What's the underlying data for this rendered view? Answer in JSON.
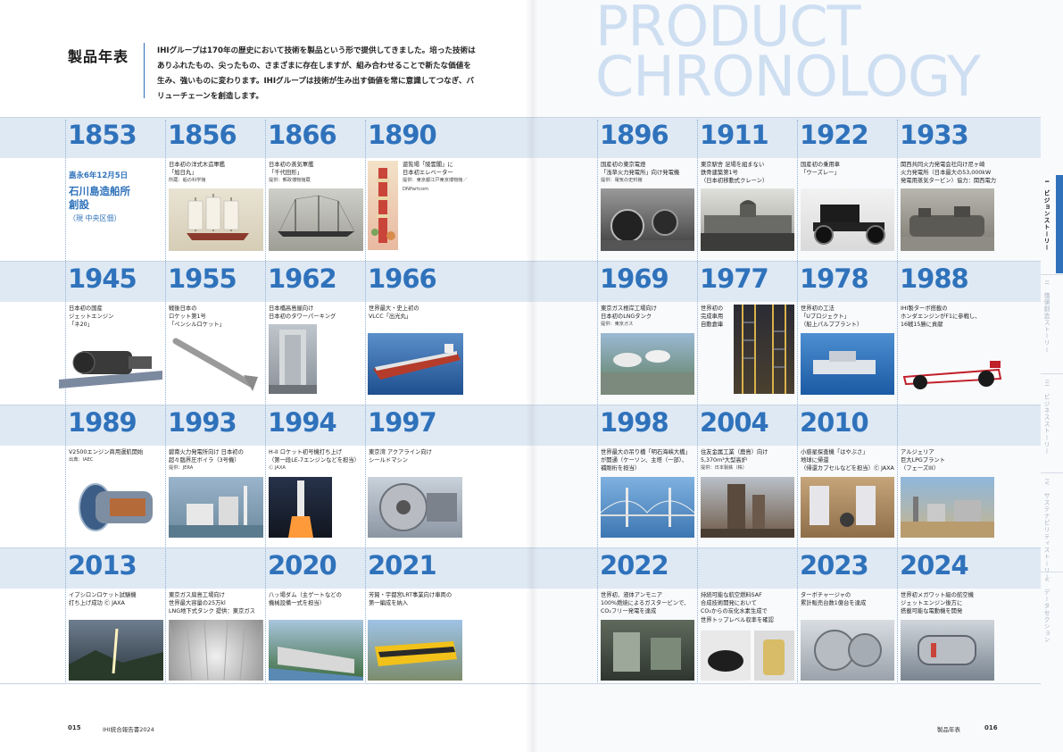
{
  "heading": "製品年表",
  "intro": "IHIグループは170年の歴史において技術を製品という形で提供してきました。培った技術はありふれたもの、尖ったもの、さまざまに存在しますが、組み合わせることで新たな価値を生み、強いものに変わります。IHIグループは技術が生み出す価値を常に意識してつなぎ、バリューチェーンを創造します。",
  "big_title": [
    "PRODUCT",
    "CHRONOLOGY"
  ],
  "founding": {
    "date": "嘉永6年12月5日",
    "name_line1": "石川島造船所",
    "name_line2": "創設",
    "location": "（現 中央区佃）"
  },
  "years": {
    "r1": [
      "1853",
      "1856",
      "1866",
      "1890",
      "1896",
      "1911",
      "1922",
      "1933"
    ],
    "r2": [
      "1945",
      "1955",
      "1962",
      "1966",
      "1969",
      "1977",
      "1978",
      "1988"
    ],
    "r3": [
      "1989",
      "1993",
      "1994",
      "1997",
      "1998",
      "2004",
      "2010"
    ],
    "r4": [
      "2013",
      "2020",
      "2021",
      "2022",
      "2023",
      "2024"
    ]
  },
  "captions": {
    "c1856": [
      "日本初の洋式木造軍艦",
      "「旭日丸」",
      "所蔵：船の科学館"
    ],
    "c1866": [
      "日本初の蒸気軍艦",
      "「千代田形」",
      "提供：郵政博物館蔵"
    ],
    "c1890": [
      "遊覧場「陵雲閣」に",
      "日本初エレベーター",
      "提供：東京都江戸東京博物館／DNPartcom"
    ],
    "c1896": [
      "国産初の東京電燈",
      "「浅草火力発電所」向け発電機",
      "提供：電気の史料館"
    ],
    "c1911": [
      "東京駅舎 足場を組まない",
      "鉄骨建築第1号",
      "（日本初移動式クレーン）"
    ],
    "c1922": [
      "国産初の乗用車",
      "「ウーズレー」"
    ],
    "c1933": [
      "関西共同火力発電会社向け尼ヶ崎",
      "火力発電所（日本最大の53,000kW",
      "発電用蒸気タービン）協力：関西電力"
    ],
    "c1945": [
      "日本初の国産",
      "ジェットエンジン",
      "「ネ20」"
    ],
    "c1955": [
      "戦後日本の",
      "ロケット第1号",
      "「ペンシルロケット」"
    ],
    "c1962": [
      "日本橋高島屋向け",
      "日本初のタワーパーキング"
    ],
    "c1966": [
      "世界最大・史上初の",
      "VLCC「出光丸」"
    ],
    "c1969": [
      "東京ガス根岸工場向け",
      "日本初のLNGタンク",
      "提供：東京ガス"
    ],
    "c1977": [
      "世界初の",
      "完成車用",
      "自動倉庫"
    ],
    "c1978": [
      "世界初の工法",
      "「Uプロジェクト」",
      "（船上パルププラント）"
    ],
    "c1988": [
      "IHI製ターボ搭載の",
      "ホンダエンジンがF1に参戦し、",
      "16戦15勝に貢献"
    ],
    "c1989": [
      "V2500エンジン商用運航開始",
      "出典：IAEC"
    ],
    "c1993": [
      "碧南火力発電所向け 日本初の",
      "超々臨界圧ボイラ（3号機）",
      "提供：JERA"
    ],
    "c1994": [
      "H-II ロケット初号機打ち上げ",
      "（第一段LE-7エンジンなどを担当）",
      "Ⓒ JAXA"
    ],
    "c1997": [
      "東京湾 アクアライン向け",
      "シールドマシン"
    ],
    "c1998": [
      "世界最大の吊り橋「明石海峡大橋」",
      "が開通（ケーソン、主塔（一部）、",
      "補剛桁を担当）"
    ],
    "c2004": [
      "住友金属工業（鹿島）向け",
      "5,370m³大型高炉",
      "提供：日本製鉄（株）"
    ],
    "c2010": [
      "小惑星探査機「はやぶさ」",
      "地球に帰還",
      "（帰還カプセルなどを担当）Ⓒ JAXA"
    ],
    "c2010b": [
      "アルジェリア",
      "巨大LPGプラント",
      "（フェーズIII）"
    ],
    "c2013": [
      "イプシロンロケット試験機",
      "打ち上げ成功 Ⓒ JAXA"
    ],
    "c2020a": [
      "東京ガス扇島工場向け",
      "世界最大容量の25万kl",
      "LNG地下式タンク 提供：東京ガス"
    ],
    "c2020b": [
      "八ッ場ダム（主ゲートなどの",
      "機械設備一式を担当）"
    ],
    "c2021": [
      "芳賀・宇都宮LRT事業向け車両の",
      "第一編成を納入"
    ],
    "c2022a": [
      "世界初、液体アンモニア",
      "100%燃焼によるガスタービンで、",
      "CO₂フリー発電を達成"
    ],
    "c2022b": [
      "持続可能な航空燃料SAF",
      "合成技術開発において",
      "CO₂からの炭化水素生成で",
      "世界トップレベル収率を確認"
    ],
    "c2023": [
      "ターボチャージャの",
      "累計販売台数1億台を達成"
    ],
    "c2024": [
      "世界初メガワット級の航空機",
      "ジェットエンジン後方に",
      "搭載可能な電動機を開発"
    ]
  },
  "tabs": [
    {
      "num": "I",
      "label": "ビジョンストーリー"
    },
    {
      "num": "II",
      "label": "価値創造ストーリー"
    },
    {
      "num": "III",
      "label": "ビジネスストーリー"
    },
    {
      "num": "IV",
      "label": "サステナビリティストーリー"
    },
    {
      "num": "V",
      "label": "データセクション"
    }
  ],
  "footer": {
    "left_page": "015",
    "left_doc": "IHI統合報告書2024",
    "right_section": "製品年表",
    "right_page": "016"
  },
  "colors": {
    "accent": "#2f72bb",
    "band": "#dfe9f4",
    "title_tint": "#cfdff2"
  }
}
